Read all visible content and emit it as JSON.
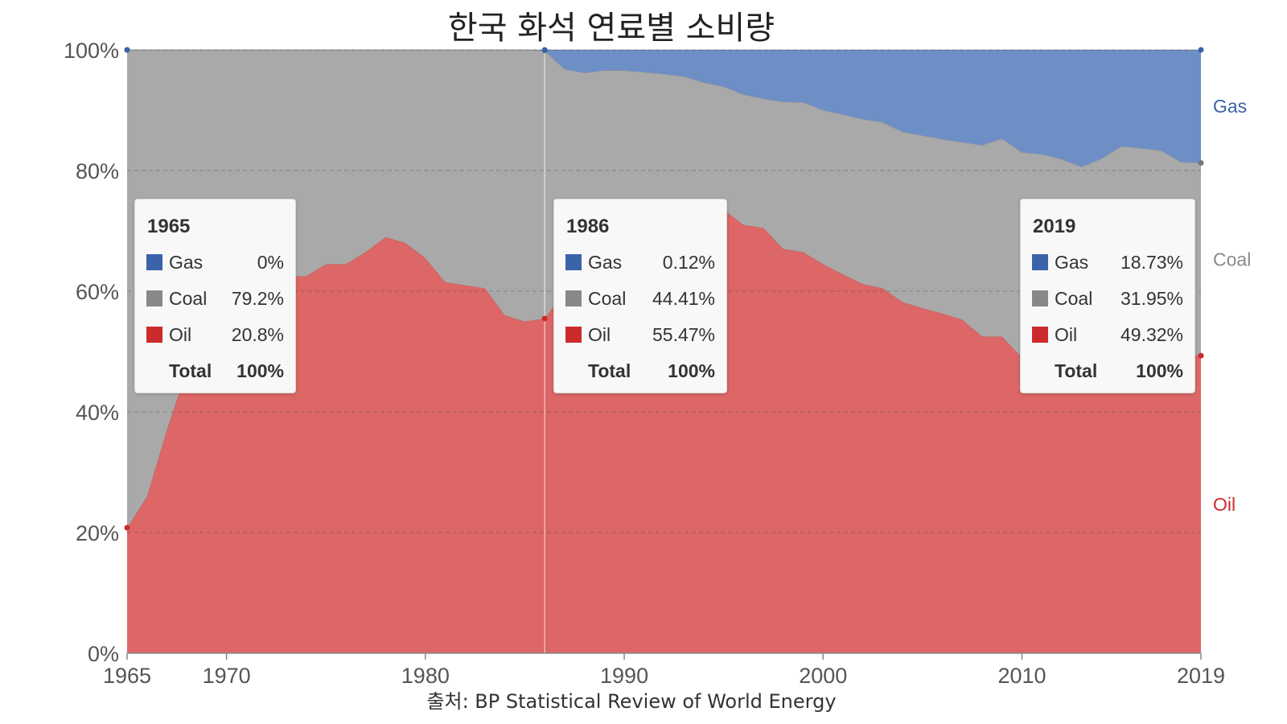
{
  "chart_data": {
    "type": "area",
    "stacked": true,
    "percent": true,
    "title": "한국 화석 연료별 소비량",
    "source": "출처: BP Statistical Review of World Energy",
    "x": [
      1965,
      1966,
      1967,
      1968,
      1969,
      1970,
      1971,
      1972,
      1973,
      1974,
      1975,
      1976,
      1977,
      1978,
      1979,
      1980,
      1981,
      1982,
      1983,
      1984,
      1985,
      1986,
      1987,
      1988,
      1989,
      1990,
      1991,
      1992,
      1993,
      1994,
      1995,
      1996,
      1997,
      1998,
      1999,
      2000,
      2001,
      2002,
      2003,
      2004,
      2005,
      2006,
      2007,
      2008,
      2009,
      2010,
      2011,
      2012,
      2013,
      2014,
      2015,
      2016,
      2017,
      2018,
      2019
    ],
    "series": [
      {
        "name": "Oil",
        "color": "#dd6666",
        "values": [
          20.8,
          26,
          37,
          47,
          55,
          59.5,
          62.5,
          62.5,
          62.5,
          62.5,
          64.5,
          64.5,
          66.5,
          69,
          68,
          65.5,
          61.5,
          61,
          60.5,
          56,
          55,
          55.47,
          60,
          63,
          65,
          69.2,
          73,
          73,
          72.7,
          73,
          73.5,
          71,
          70.5,
          67,
          66.5,
          64.5,
          62.8,
          61.2,
          60.5,
          58.2,
          57.2,
          56.3,
          55.3,
          52.5,
          52.5,
          49,
          48,
          47.5,
          47.3,
          48.5,
          50,
          51,
          50.5,
          49.5,
          49.32
        ]
      },
      {
        "name": "Coal",
        "color": "#a9a9a9",
        "values": [
          79.2,
          74,
          63,
          53,
          45,
          40.5,
          37.5,
          37.5,
          37.5,
          37.5,
          35.5,
          35.5,
          33.5,
          31,
          32,
          34.5,
          38.5,
          39,
          39.5,
          44,
          45,
          44.41,
          36.8,
          33.2,
          31.6,
          27.4,
          23.3,
          23,
          22.9,
          21.6,
          20.4,
          21.6,
          21.4,
          24.4,
          24.8,
          25.5,
          26.5,
          27.3,
          27.5,
          28.2,
          28.6,
          28.9,
          29.4,
          31.7,
          32.8,
          34,
          34.7,
          34.4,
          33.3,
          33.5,
          34,
          32.7,
          32.8,
          31.9,
          31.95
        ]
      },
      {
        "name": "Gas",
        "color": "#6e8ec6",
        "values": [
          0,
          0,
          0,
          0,
          0,
          0,
          0,
          0,
          0,
          0,
          0,
          0,
          0,
          0,
          0,
          0,
          0,
          0,
          0,
          0,
          0,
          0.12,
          3.2,
          3.8,
          3.4,
          3.4,
          3.7,
          4,
          4.4,
          5.4,
          6.1,
          7.4,
          8.1,
          8.6,
          8.7,
          10,
          10.7,
          11.5,
          12,
          13.6,
          14.2,
          14.8,
          15.3,
          15.8,
          14.7,
          17,
          17.3,
          18.1,
          19.4,
          18,
          16,
          16.3,
          16.7,
          18.6,
          18.73
        ]
      }
    ],
    "y_ticks": [
      "0%",
      "20%",
      "40%",
      "60%",
      "80%",
      "100%"
    ],
    "x_ticks": [
      "1965",
      "1970",
      "1980",
      "1990",
      "2000",
      "2010",
      "2019"
    ],
    "ylim": [
      0,
      100
    ],
    "xlim": [
      1965,
      2019
    ],
    "grid": true,
    "series_labels": [
      "Gas",
      "Coal",
      "Oil"
    ],
    "label_colors": {
      "Gas": "#3a63aa",
      "Coal": "#8a8a8a",
      "Oil": "#cc2b2b"
    },
    "highlight_year": 1986,
    "tooltips": [
      {
        "year": "1965",
        "rows": [
          {
            "name": "Gas",
            "value": "0%",
            "color": "#3a63aa"
          },
          {
            "name": "Coal",
            "value": "79.2%",
            "color": "#888888"
          },
          {
            "name": "Oil",
            "value": "20.8%",
            "color": "#cc2b2b"
          }
        ],
        "total_label": "Total",
        "total_value": "100%"
      },
      {
        "year": "1986",
        "rows": [
          {
            "name": "Gas",
            "value": "0.12%",
            "color": "#3a63aa"
          },
          {
            "name": "Coal",
            "value": "44.41%",
            "color": "#888888"
          },
          {
            "name": "Oil",
            "value": "55.47%",
            "color": "#cc2b2b"
          }
        ],
        "total_label": "Total",
        "total_value": "100%"
      },
      {
        "year": "2019",
        "rows": [
          {
            "name": "Gas",
            "value": "18.73%",
            "color": "#3a63aa"
          },
          {
            "name": "Coal",
            "value": "31.95%",
            "color": "#888888"
          },
          {
            "name": "Oil",
            "value": "49.32%",
            "color": "#cc2b2b"
          }
        ],
        "total_label": "Total",
        "total_value": "100%"
      }
    ]
  }
}
